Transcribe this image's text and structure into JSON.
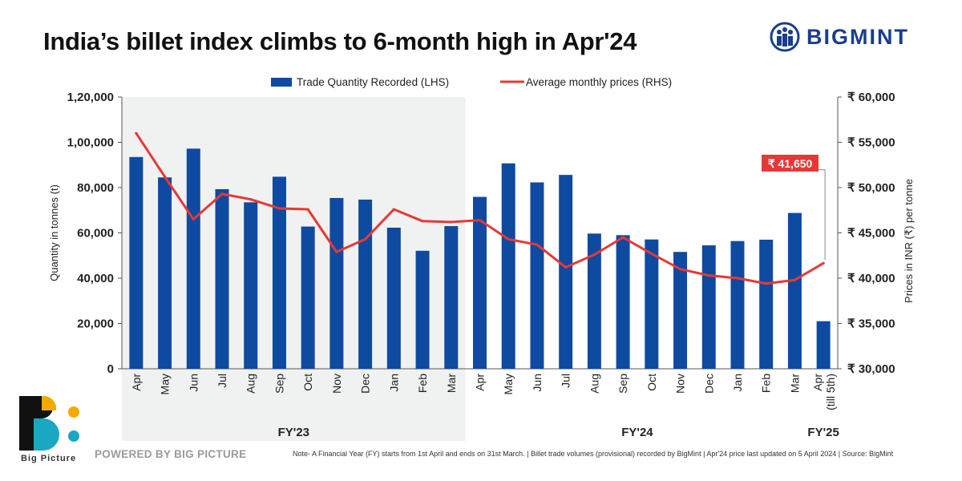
{
  "header": {
    "title": "India’s billet index climbs to 6-month high in Apr'24",
    "brand": "BIGMINT"
  },
  "footer": {
    "powered_by": "POWERED BY BIG PICTURE",
    "logo_label": "Big Picture",
    "note": "Note- A Financial Year (FY) starts from 1st April and ends on 31st March. | Billet trade volumes (provisional) recorded by BigMint | Apr'24 price last updated on 5 April 2024 | Source: BigMint"
  },
  "colors": {
    "bar": "#0f4aa1",
    "line": "#e53935",
    "shade": "#f0f1f1",
    "brand": "#1a3e8c"
  },
  "chart_data": {
    "type": "bar",
    "title": "India’s billet index climbs to 6-month high in Apr'24",
    "categories": [
      "Apr",
      "May",
      "Jun",
      "Jul",
      "Aug",
      "Sep",
      "Oct",
      "Nov",
      "Dec",
      "Jan",
      "Feb",
      "Mar",
      "Apr",
      "May",
      "Jun",
      "Jul",
      "Aug",
      "Sep",
      "Oct",
      "Nov",
      "Dec",
      "Jan",
      "Feb",
      "Mar",
      "Apr\n(till 5th)"
    ],
    "series": [
      {
        "name": "Trade Quantity Recorded (LHS)",
        "type": "bar",
        "axis": "left",
        "values": [
          93500,
          84500,
          97200,
          79300,
          73500,
          84800,
          62800,
          75400,
          74700,
          62300,
          52100,
          63000,
          75900,
          90700,
          82300,
          85600,
          59700,
          59000,
          57100,
          51600,
          54500,
          56400,
          57000,
          68800,
          21000
        ]
      },
      {
        "name": "Average monthly prices (RHS)",
        "type": "line",
        "axis": "right",
        "values": [
          56000,
          51200,
          46500,
          49300,
          48700,
          47700,
          47600,
          42900,
          44300,
          47600,
          46300,
          46200,
          46400,
          44300,
          43700,
          41200,
          42600,
          44500,
          42700,
          41000,
          40300,
          40000,
          39400,
          39800,
          41650
        ]
      }
    ],
    "fiscal_years": [
      {
        "label": "FY'23",
        "start": 0,
        "end": 11
      },
      {
        "label": "FY'24",
        "start": 12,
        "end": 23
      },
      {
        "label": "FY'25",
        "start": 24,
        "end": 24
      }
    ],
    "ylabel": "Quantity in tonnes (t)",
    "ylabel_right": "Prices in INR (₹) per tonne",
    "ylim": [
      0,
      120000
    ],
    "ylim_right": [
      30000,
      60000
    ],
    "yticks": [
      "0",
      "20,000",
      "40,000",
      "60,000",
      "80,000",
      "1,00,000",
      "1,20,000"
    ],
    "yticks_right": [
      "₹ 30,000",
      "₹ 35,000",
      "₹ 40,000",
      "₹ 45,000",
      "₹ 50,000",
      "₹ 55,000",
      "₹ 60,000"
    ],
    "callout": "₹ 41,650",
    "legend_position": "top-center",
    "grid": false
  }
}
